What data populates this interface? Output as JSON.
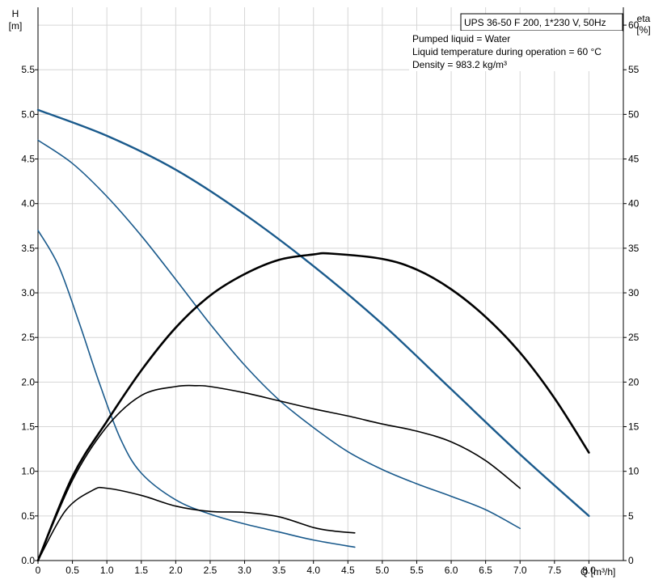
{
  "chart_data": {
    "type": "line",
    "title": "UPS 36-50 F 200, 1*230 V, 50Hz",
    "annotations": [
      "Pumped liquid = Water",
      "Liquid temperature during operation = 60 °C",
      "Density = 983.2 kg/m³"
    ],
    "left_axis_label": [
      "H",
      "[m]"
    ],
    "right_axis_label": [
      "eta",
      "[%]"
    ],
    "x_axis_label": "Q [m³/h]",
    "xlim": [
      0,
      8.5
    ],
    "ylim": [
      0,
      6.2
    ],
    "y2lim": [
      0,
      62
    ],
    "grid": true,
    "x_ticks": [
      "0",
      "0.5",
      "1.0",
      "1.5",
      "2.0",
      "2.5",
      "3.0",
      "3.5",
      "4.0",
      "4.5",
      "5.0",
      "5.5",
      "6.0",
      "6.5",
      "7.0",
      "7.5",
      "8.0"
    ],
    "y_ticks": [
      "0.0",
      "0.5",
      "1.0",
      "1.5",
      "2.0",
      "2.5",
      "3.0",
      "3.5",
      "4.0",
      "4.5",
      "5.0",
      "5.5"
    ],
    "y2_ticks": [
      "0",
      "5",
      "10",
      "15",
      "20",
      "25",
      "30",
      "35",
      "40",
      "45",
      "50",
      "55",
      "60"
    ],
    "series": [
      {
        "kind": "head",
        "axis": "left",
        "color": "#1a5a8c",
        "width": 2.4,
        "x": [
          0,
          1,
          2,
          3,
          4,
          5,
          6,
          7,
          8
        ],
        "y": [
          5.05,
          4.76,
          4.38,
          3.88,
          3.3,
          2.65,
          1.92,
          1.19,
          0.5
        ]
      },
      {
        "kind": "head",
        "axis": "left",
        "color": "#1a5a8c",
        "width": 1.6,
        "x": [
          0,
          0.5,
          1,
          1.5,
          2,
          2.5,
          3,
          3.5,
          4,
          4.5,
          5,
          5.5,
          6,
          6.5,
          7
        ],
        "y": [
          4.71,
          4.45,
          4.08,
          3.64,
          3.15,
          2.65,
          2.19,
          1.8,
          1.49,
          1.22,
          1.02,
          0.86,
          0.72,
          0.57,
          0.36
        ]
      },
      {
        "kind": "head",
        "axis": "left",
        "color": "#1a5a8c",
        "width": 1.6,
        "x": [
          0,
          0.3,
          0.6,
          0.9,
          1.2,
          1.5,
          2,
          2.5,
          3,
          3.5,
          4,
          4.6
        ],
        "y": [
          3.7,
          3.3,
          2.66,
          1.97,
          1.36,
          0.98,
          0.68,
          0.52,
          0.41,
          0.32,
          0.23,
          0.15
        ]
      },
      {
        "kind": "efficiency",
        "axis": "right",
        "color": "#000000",
        "width": 2.6,
        "x": [
          0,
          0.5,
          1,
          1.5,
          2,
          2.5,
          3,
          3.5,
          4,
          4.25,
          5,
          5.5,
          6,
          6.5,
          7,
          7.5,
          8
        ],
        "y": [
          0,
          9.4,
          15.6,
          21.3,
          26.1,
          29.7,
          32.1,
          33.7,
          34.3,
          34.4,
          33.8,
          32.6,
          30.4,
          27.3,
          23.3,
          18.2,
          12.1
        ]
      },
      {
        "kind": "efficiency",
        "axis": "right",
        "color": "#000000",
        "width": 1.6,
        "x": [
          0,
          0.5,
          1,
          1.5,
          2,
          2.3,
          2.5,
          3,
          3.5,
          4,
          4.5,
          5,
          5.5,
          6,
          6.5,
          7
        ],
        "y": [
          0,
          9,
          15,
          18.5,
          19.5,
          19.6,
          19.5,
          18.8,
          17.9,
          17,
          16.2,
          15.3,
          14.5,
          13.3,
          11.2,
          8.1
        ]
      },
      {
        "kind": "efficiency",
        "axis": "right",
        "color": "#000000",
        "width": 1.6,
        "x": [
          0,
          0.4,
          0.8,
          1,
          1.5,
          2,
          2.5,
          3,
          3.5,
          4,
          4.3,
          4.6
        ],
        "y": [
          0,
          5.6,
          7.9,
          8.1,
          7.3,
          6.1,
          5.5,
          5.4,
          4.9,
          3.7,
          3.3,
          3.1
        ]
      }
    ]
  }
}
